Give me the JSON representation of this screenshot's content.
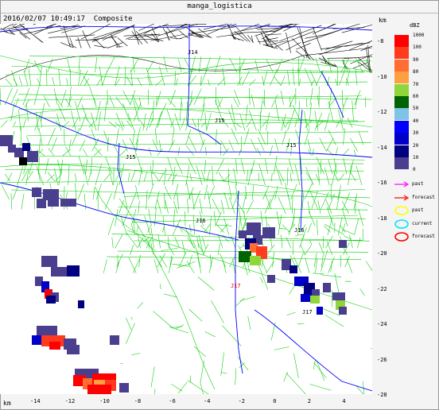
{
  "window": {
    "title": "manga_logistica"
  },
  "status": {
    "datetime": "2016/02/07 10:49:17",
    "mode": "Composite"
  },
  "axes": {
    "unit": "km",
    "x_ticks": [
      "-14",
      "-12",
      "-10",
      "-8",
      "-6",
      "-4",
      "-2",
      "0",
      "2",
      "4"
    ],
    "y_ticks": [
      "-8",
      "-10",
      "-12",
      "-14",
      "-16",
      "-18",
      "-20",
      "-22",
      "-24",
      "-26",
      "-28"
    ]
  },
  "map_labels": {
    "j14": "J14",
    "j15": "J15",
    "j15b": "J15",
    "j15c": "J15",
    "j16": "J16",
    "j16b": "J16",
    "j17": "J17",
    "j17b": "J17"
  },
  "legend": {
    "unit": "dBZ",
    "levels": [
      {
        "label": "1000",
        "color": "#ff0000"
      },
      {
        "label": "100",
        "color": "#ff3a1e"
      },
      {
        "label": "90",
        "color": "#ff6e30"
      },
      {
        "label": "80",
        "color": "#ffa040"
      },
      {
        "label": "70",
        "color": "#8ed63a"
      },
      {
        "label": "60",
        "color": "#006400"
      },
      {
        "label": "50",
        "color": "#7fc4e6"
      },
      {
        "label": "40",
        "color": "#0000ff"
      },
      {
        "label": "30",
        "color": "#0000c8"
      },
      {
        "label": "20",
        "color": "#000080"
      },
      {
        "label": "10",
        "color": "#4a3e8e"
      },
      {
        "label": "0",
        "color": ""
      }
    ],
    "tracks": [
      {
        "label": "past",
        "color": "#ff00ff",
        "kind": "arrow"
      },
      {
        "label": "forecast",
        "color": "#ff0000",
        "kind": "arrow"
      },
      {
        "label": "past",
        "color": "#ffff00",
        "kind": "ellipse"
      },
      {
        "label": "current",
        "color": "#00e5ff",
        "kind": "ellipse"
      },
      {
        "label": "forecast",
        "color": "#ff0000",
        "kind": "ellipse"
      }
    ]
  }
}
